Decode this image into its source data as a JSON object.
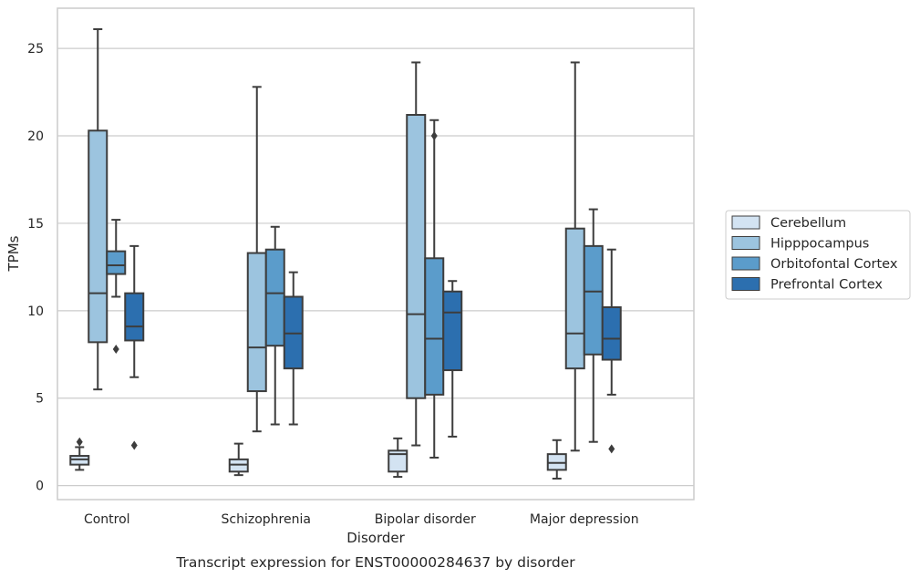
{
  "chart_data": {
    "type": "box",
    "caption": "Transcript expression for ENST00000284637 by disorder",
    "xlabel": "Disorder",
    "ylabel": "TPMs",
    "ylim": [
      -0.8,
      27.3
    ],
    "yticks": [
      0,
      5,
      10,
      15,
      20,
      25
    ],
    "grid": "horizontal",
    "legend_position": "right",
    "categories": [
      "Control",
      "Schizophrenia",
      "Bipolar disorder",
      "Major depression"
    ],
    "series": [
      {
        "name": "Cerebellum",
        "color": "#d3e3f2",
        "boxes": [
          {
            "whislo": 0.9,
            "q1": 1.2,
            "med": 1.5,
            "q3": 1.7,
            "whishi": 2.2,
            "fliers": [
              2.5
            ]
          },
          {
            "whislo": 0.6,
            "q1": 0.8,
            "med": 1.2,
            "q3": 1.5,
            "whishi": 2.4,
            "fliers": []
          },
          {
            "whislo": 0.5,
            "q1": 0.8,
            "med": 1.8,
            "q3": 2.0,
            "whishi": 2.7,
            "fliers": []
          },
          {
            "whislo": 0.4,
            "q1": 0.9,
            "med": 1.3,
            "q3": 1.8,
            "whishi": 2.6,
            "fliers": []
          }
        ]
      },
      {
        "name": "Hipppocampus",
        "color": "#9cc4df",
        "boxes": [
          {
            "whislo": 5.5,
            "q1": 8.2,
            "med": 11.0,
            "q3": 20.3,
            "whishi": 26.1,
            "fliers": []
          },
          {
            "whislo": 3.1,
            "q1": 5.4,
            "med": 7.9,
            "q3": 13.3,
            "whishi": 22.8,
            "fliers": []
          },
          {
            "whislo": 2.3,
            "q1": 5.0,
            "med": 9.8,
            "q3": 21.2,
            "whishi": 24.2,
            "fliers": []
          },
          {
            "whislo": 2.0,
            "q1": 6.7,
            "med": 8.7,
            "q3": 14.7,
            "whishi": 24.2,
            "fliers": []
          }
        ]
      },
      {
        "name": "Orbitofontal Cortex",
        "color": "#5b9ccb",
        "boxes": [
          {
            "whislo": 10.8,
            "q1": 12.1,
            "med": 12.6,
            "q3": 13.4,
            "whishi": 15.2,
            "fliers": [
              7.8
            ]
          },
          {
            "whislo": 3.5,
            "q1": 8.0,
            "med": 11.0,
            "q3": 13.5,
            "whishi": 14.8,
            "fliers": []
          },
          {
            "whislo": 1.6,
            "q1": 5.2,
            "med": 8.4,
            "q3": 13.0,
            "whishi": 20.9,
            "fliers": [
              20.0
            ]
          },
          {
            "whislo": 2.5,
            "q1": 7.5,
            "med": 11.1,
            "q3": 13.7,
            "whishi": 15.8,
            "fliers": []
          }
        ]
      },
      {
        "name": "Prefrontal Cortex",
        "color": "#2c6faf",
        "boxes": [
          {
            "whislo": 6.2,
            "q1": 8.3,
            "med": 9.1,
            "q3": 11.0,
            "whishi": 13.7,
            "fliers": [
              2.3
            ]
          },
          {
            "whislo": 3.5,
            "q1": 6.7,
            "med": 8.7,
            "q3": 10.8,
            "whishi": 12.2,
            "fliers": []
          },
          {
            "whislo": 2.8,
            "q1": 6.6,
            "med": 9.9,
            "q3": 11.1,
            "whishi": 11.7,
            "fliers": []
          },
          {
            "whislo": 5.2,
            "q1": 7.2,
            "med": 8.4,
            "q3": 10.2,
            "whishi": 13.5,
            "fliers": [
              2.1
            ]
          }
        ]
      }
    ]
  }
}
